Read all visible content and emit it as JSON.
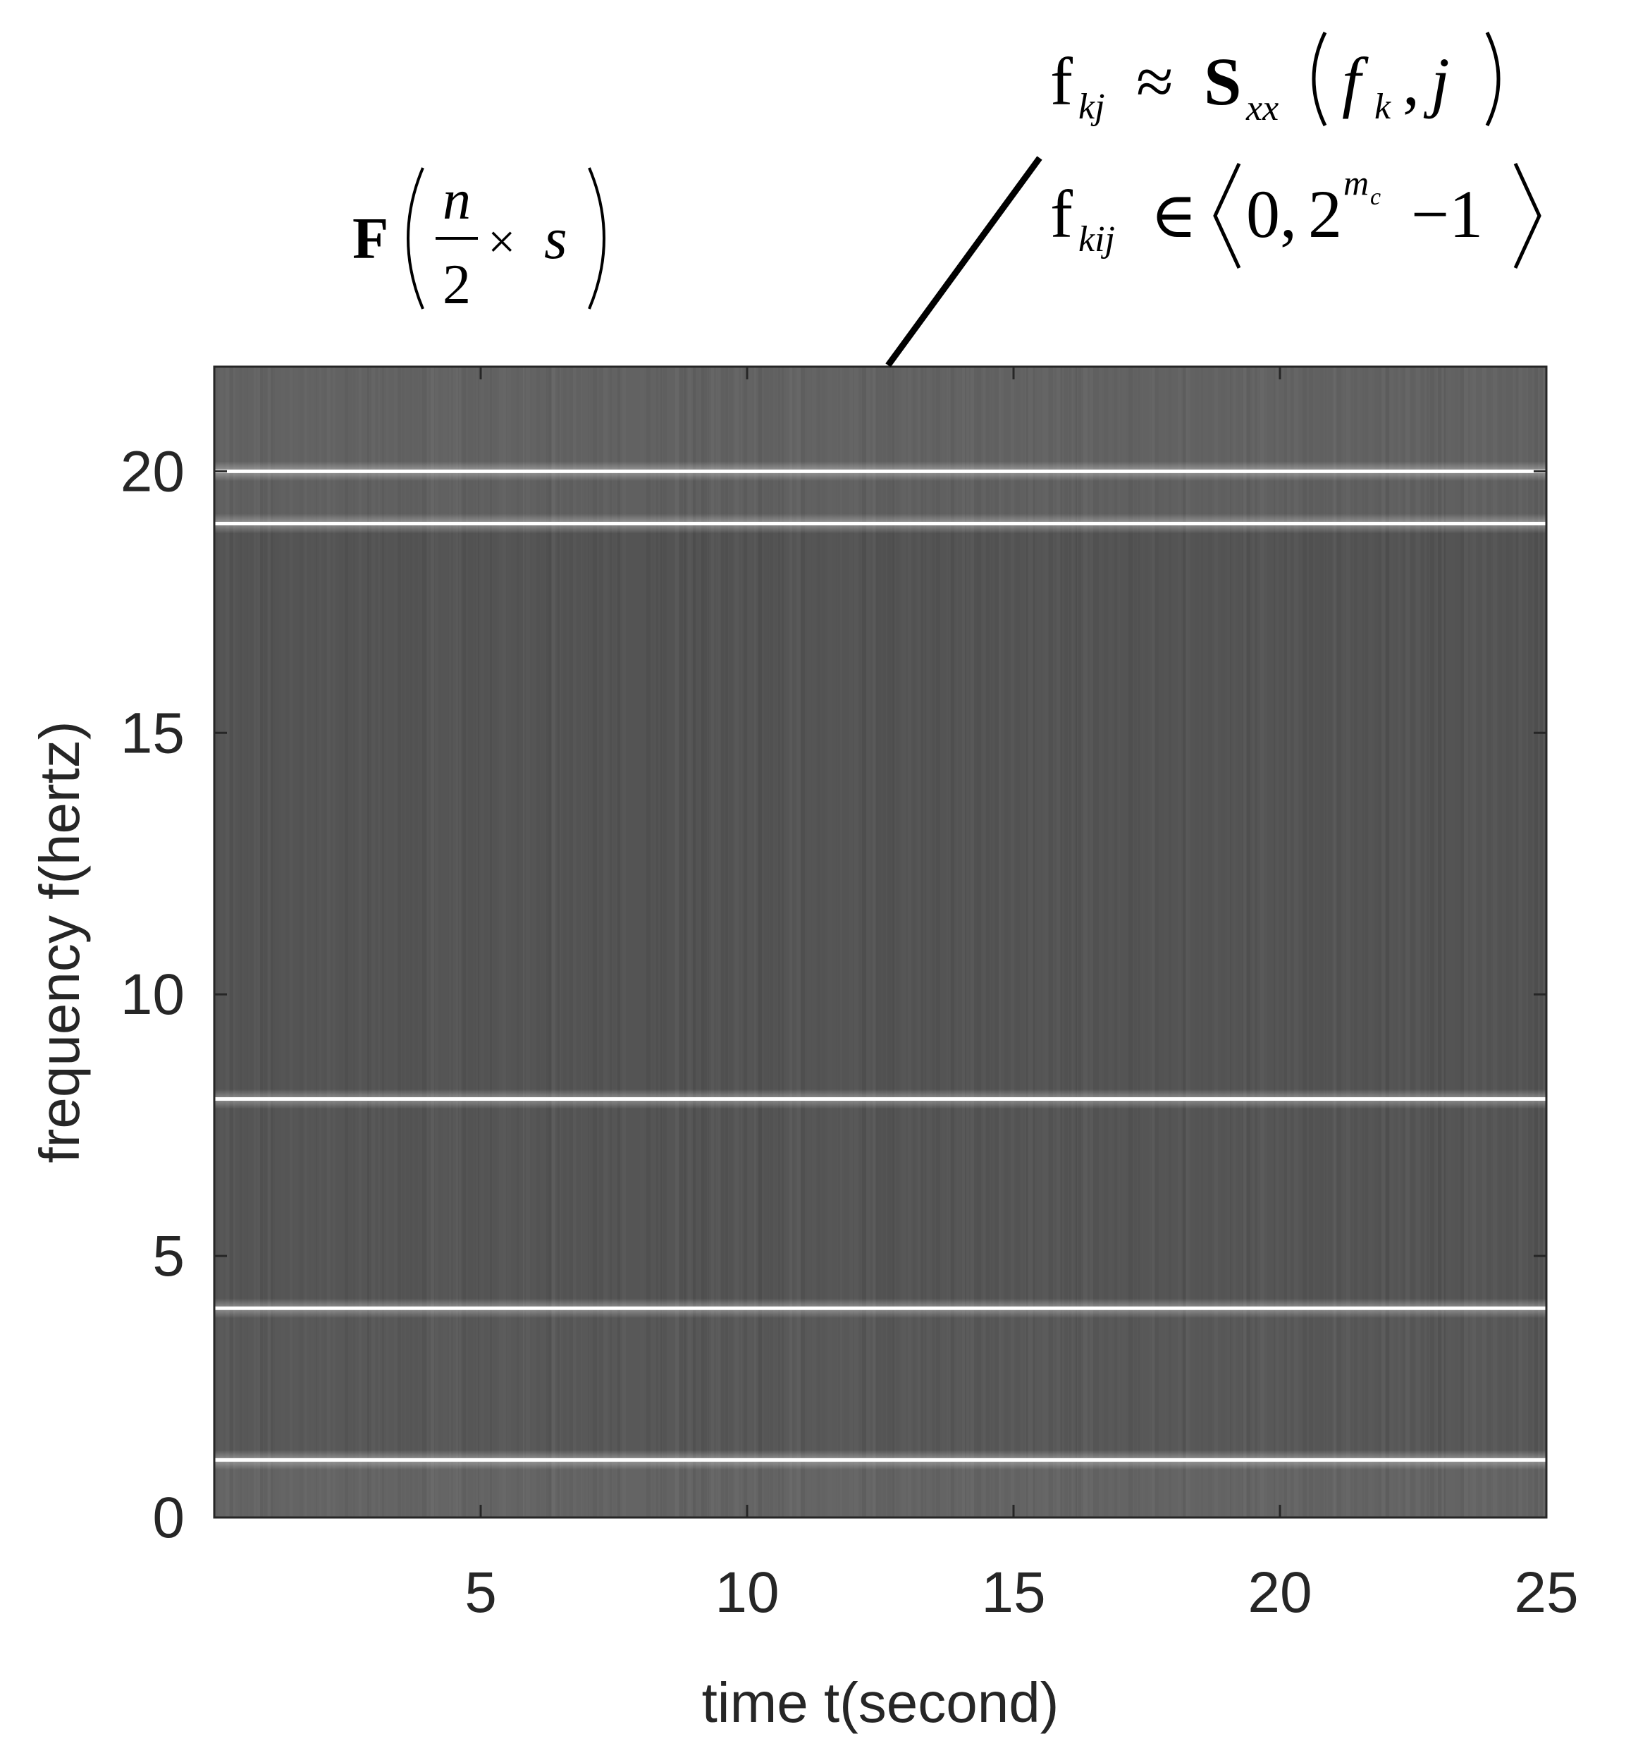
{
  "chart_data": {
    "type": "heatmap",
    "title": "",
    "xlabel": "time t(second)",
    "ylabel": "frequency f(hertz)",
    "xlim": [
      0,
      25
    ],
    "ylim": [
      0,
      22
    ],
    "x_ticks": [
      5,
      10,
      15,
      20,
      25
    ],
    "y_ticks": [
      0,
      5,
      10,
      15,
      20
    ],
    "colormap": "gray",
    "grid": false,
    "bright_frequency_lines_hz": [
      1.1,
      4.0,
      8.0,
      19.0,
      20.0
    ],
    "annotations": {
      "left_formula": {
        "F": "F",
        "num": "n",
        "den": "2",
        "times": "×",
        "s": "s"
      },
      "right_formula_1": {
        "f": "f",
        "sub": "kj",
        "approx": "≈",
        "S": "S",
        "Ssub": "xx",
        "fk": "f",
        "fksub": "k",
        "comma": ",",
        "j": "j"
      },
      "right_formula_2": {
        "f": "f",
        "sub": "kij",
        "in": "∈",
        "zero": "0,",
        "base": "2",
        "exp": "m",
        "expsub": "c",
        "minus1": "−1"
      }
    }
  },
  "colors": {
    "background": "#ffffff",
    "axis": "#262626",
    "plot_base": "#5a5a5a",
    "bright_line": "#ffffff",
    "pointer": "#000000"
  }
}
